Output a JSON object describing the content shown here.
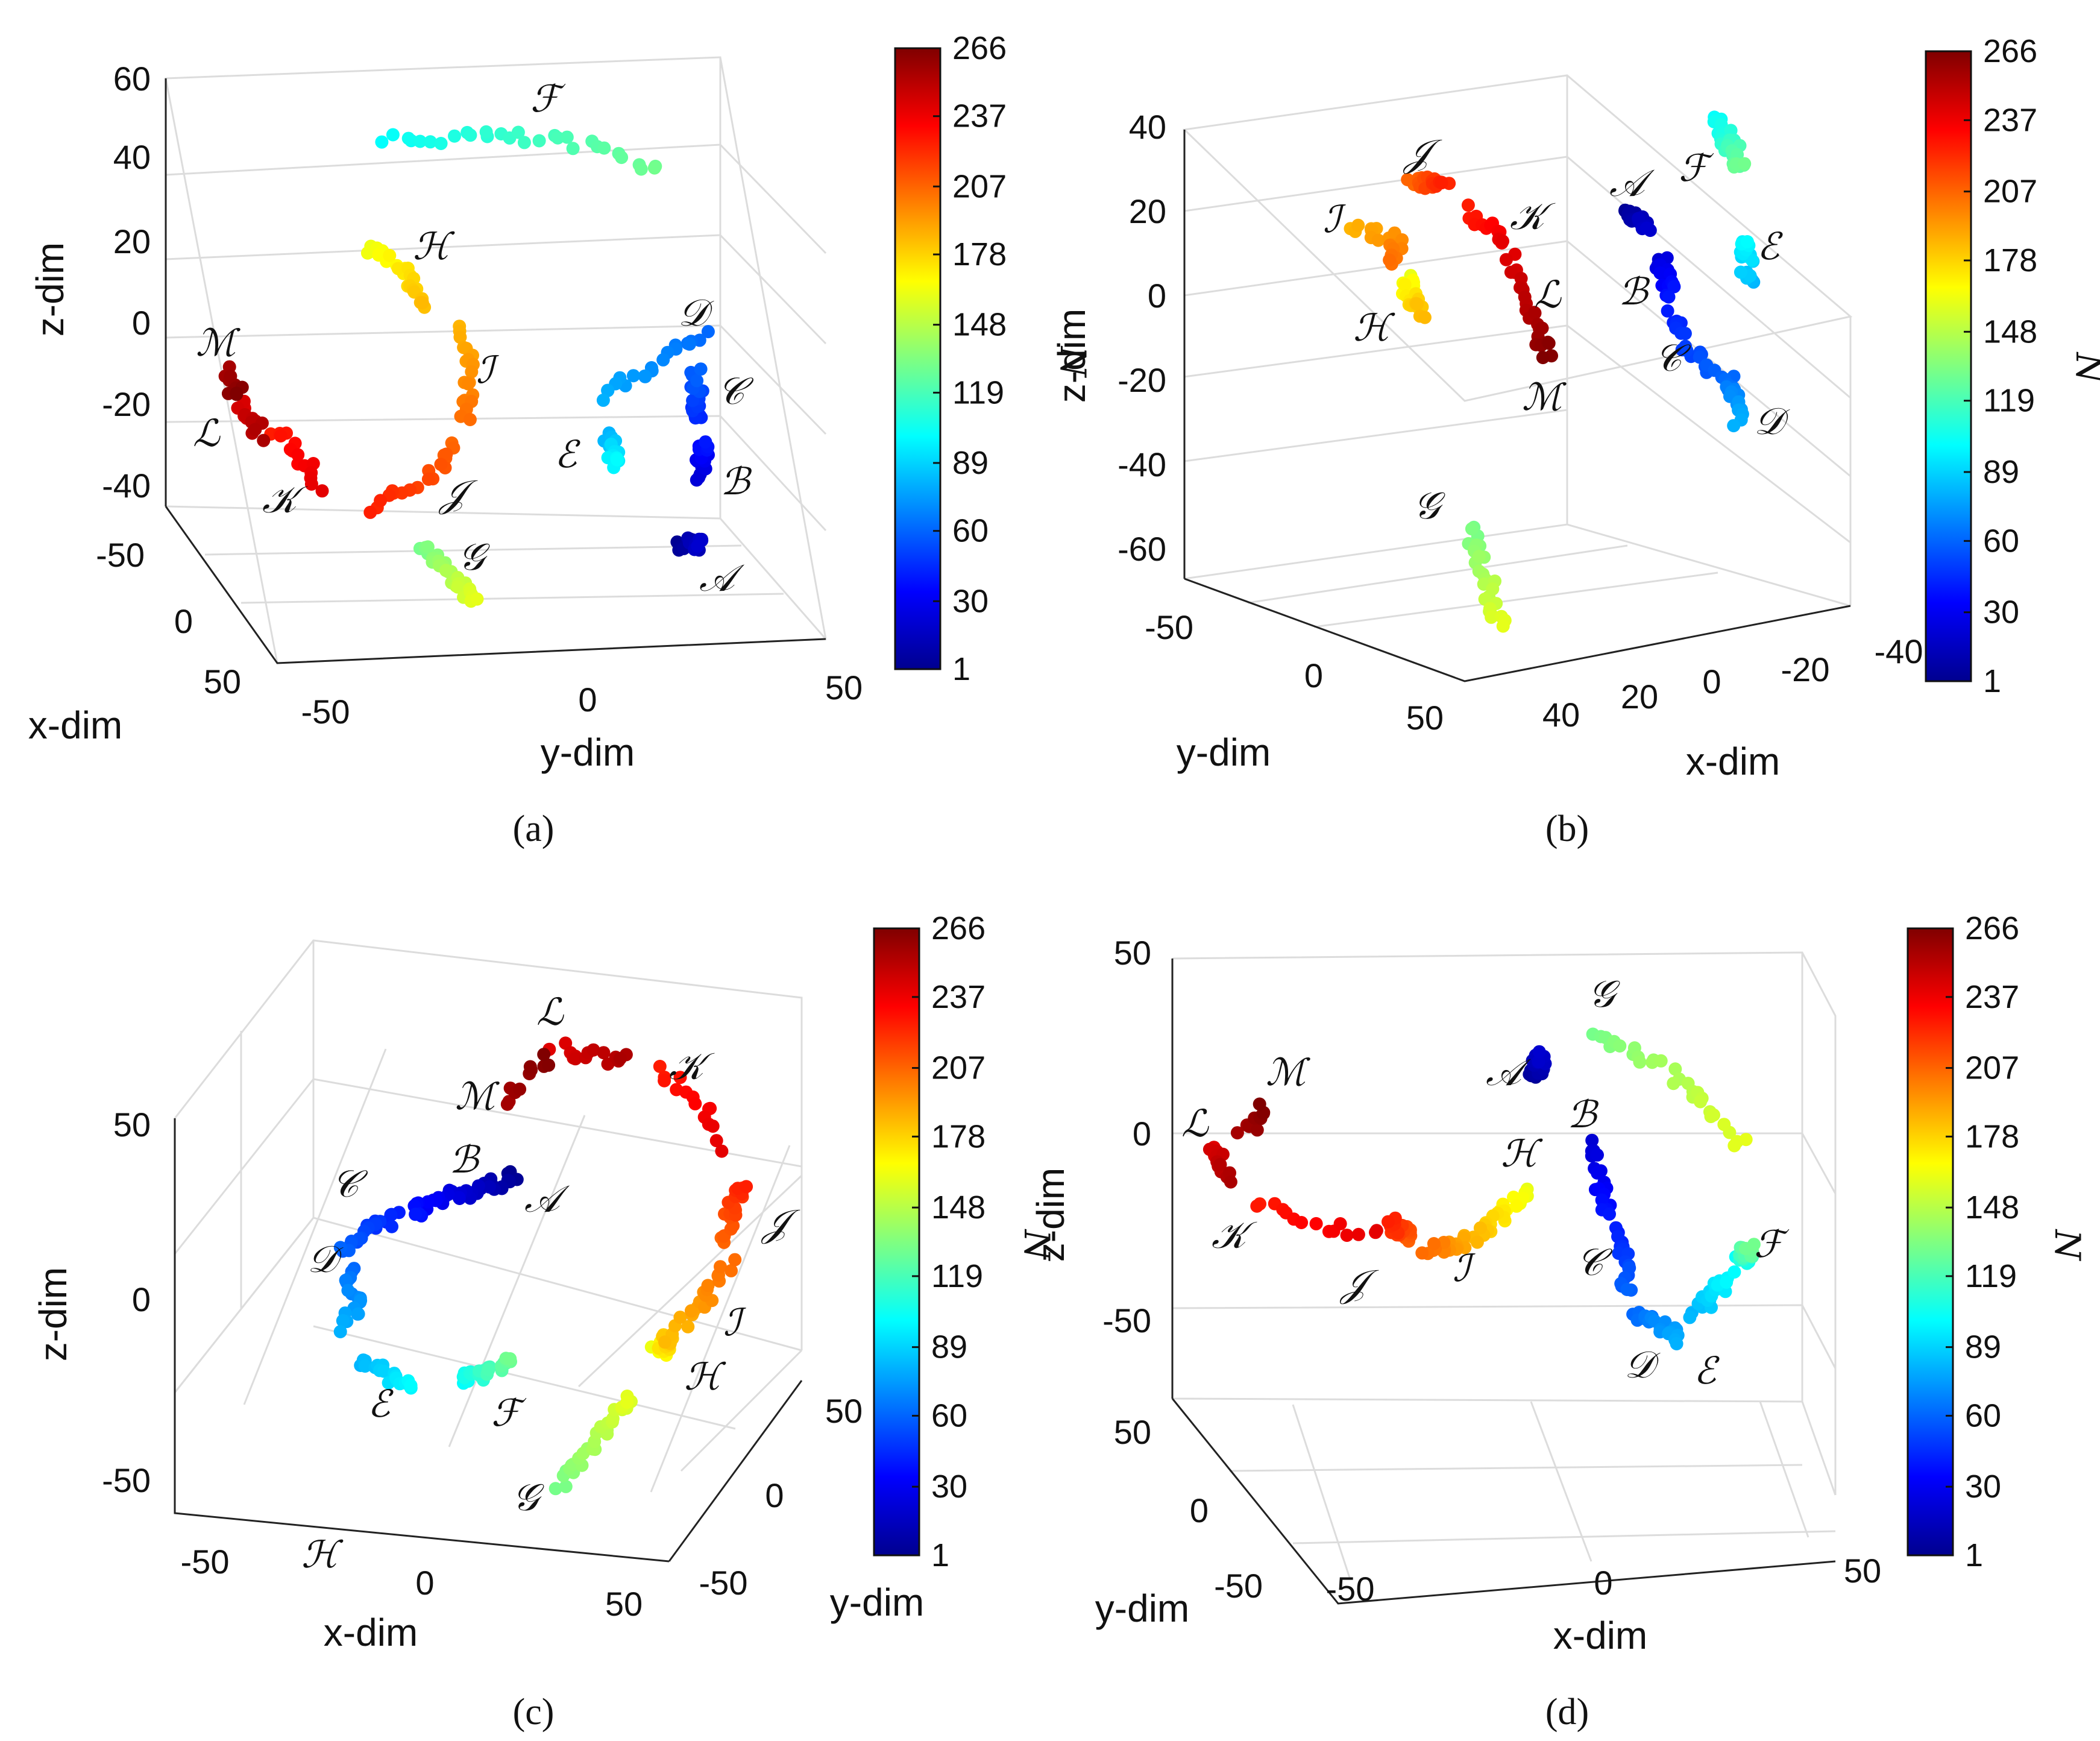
{
  "figure": {
    "colorbar": {
      "label": "N",
      "ticks": [
        "266",
        "237",
        "207",
        "178",
        "148",
        "119",
        "89",
        "60",
        "30",
        "1"
      ],
      "min": 1,
      "max": 266
    },
    "colormap": [
      "#00008f",
      "#0000ff",
      "#0080ff",
      "#00ffff",
      "#80ff80",
      "#ffff00",
      "#ff8000",
      "#ff0000",
      "#800000"
    ],
    "box_color": "#dcdcdc",
    "axis_color": "#222222"
  },
  "chart_data": [
    {
      "type": "scatter",
      "panel": "(a)",
      "caption": "(a)",
      "xlabel": "x-dim",
      "ylabel": "y-dim",
      "zlabel": "z-dim",
      "xticks": [
        "-50",
        "0",
        "50"
      ],
      "yticks": [
        "-50",
        "0",
        "50"
      ],
      "zticks": [
        "60",
        "40",
        "20",
        "0",
        "-20",
        "-40"
      ],
      "clusters": [
        {
          "label": "𝒜",
          "n_range": [
            1,
            20
          ]
        },
        {
          "label": "ℬ",
          "n_range": [
            21,
            40
          ]
        },
        {
          "label": "𝒞",
          "n_range": [
            41,
            60
          ]
        },
        {
          "label": "𝒟",
          "n_range": [
            61,
            80
          ]
        },
        {
          "label": "ℰ",
          "n_range": [
            81,
            100
          ]
        },
        {
          "label": "ℱ",
          "n_range": [
            101,
            130
          ]
        },
        {
          "label": "𝒢",
          "n_range": [
            131,
            160
          ]
        },
        {
          "label": "ℋ",
          "n_range": [
            161,
            185
          ]
        },
        {
          "label": "ℐ",
          "n_range": [
            186,
            205
          ]
        },
        {
          "label": "𝒥",
          "n_range": [
            206,
            225
          ]
        },
        {
          "label": "𝒦",
          "n_range": [
            226,
            240
          ]
        },
        {
          "label": "ℒ",
          "n_range": [
            241,
            255
          ]
        },
        {
          "label": "ℳ",
          "n_range": [
            256,
            266
          ]
        }
      ]
    },
    {
      "type": "scatter",
      "panel": "(b)",
      "caption": "(b)",
      "xlabel": "x-dim",
      "ylabel": "y-dim",
      "zlabel": "z-dim",
      "xticks": [
        "40",
        "20",
        "0",
        "-20",
        "-40"
      ],
      "yticks": [
        "-50",
        "0",
        "50"
      ],
      "zticks": [
        "40",
        "20",
        "0",
        "-20",
        "-40",
        "-60"
      ],
      "clusters": [
        {
          "label": "𝒜"
        },
        {
          "label": "ℬ"
        },
        {
          "label": "𝒞"
        },
        {
          "label": "𝒟"
        },
        {
          "label": "ℰ"
        },
        {
          "label": "ℱ"
        },
        {
          "label": "𝒢"
        },
        {
          "label": "ℋ"
        },
        {
          "label": "ℐ"
        },
        {
          "label": "𝒥"
        },
        {
          "label": "𝒦"
        },
        {
          "label": "ℒ"
        },
        {
          "label": "ℳ"
        }
      ]
    },
    {
      "type": "scatter",
      "panel": "(c)",
      "caption": "(c)",
      "xlabel": "x-dim",
      "ylabel": "y-dim",
      "zlabel": "z-dim",
      "xticks": [
        "-50",
        "0",
        "50"
      ],
      "yticks": [
        "50",
        "0",
        "-50"
      ],
      "zticks": [
        "50",
        "0",
        "-50"
      ],
      "extra_label": "ℋ",
      "clusters": [
        {
          "label": "𝒜"
        },
        {
          "label": "ℬ"
        },
        {
          "label": "𝒞"
        },
        {
          "label": "𝒟"
        },
        {
          "label": "ℰ"
        },
        {
          "label": "ℱ"
        },
        {
          "label": "𝒢"
        },
        {
          "label": "ℋ"
        },
        {
          "label": "ℐ"
        },
        {
          "label": "𝒥"
        },
        {
          "label": "𝒦"
        },
        {
          "label": "ℒ"
        },
        {
          "label": "ℳ"
        }
      ]
    },
    {
      "type": "scatter",
      "panel": "(d)",
      "caption": "(d)",
      "xlabel": "x-dim",
      "ylabel": "y-dim",
      "zlabel": "z-dim",
      "xticks": [
        "-50",
        "0",
        "50"
      ],
      "yticks": [
        "50",
        "0",
        "-50"
      ],
      "zticks": [
        "50",
        "0",
        "-50"
      ],
      "clusters": [
        {
          "label": "𝒜"
        },
        {
          "label": "ℬ"
        },
        {
          "label": "𝒞"
        },
        {
          "label": "𝒟"
        },
        {
          "label": "ℰ"
        },
        {
          "label": "ℱ"
        },
        {
          "label": "𝒢"
        },
        {
          "label": "ℋ"
        },
        {
          "label": "ℐ"
        },
        {
          "label": "𝒥"
        },
        {
          "label": "𝒦"
        },
        {
          "label": "ℒ"
        },
        {
          "label": "ℳ"
        }
      ]
    }
  ]
}
